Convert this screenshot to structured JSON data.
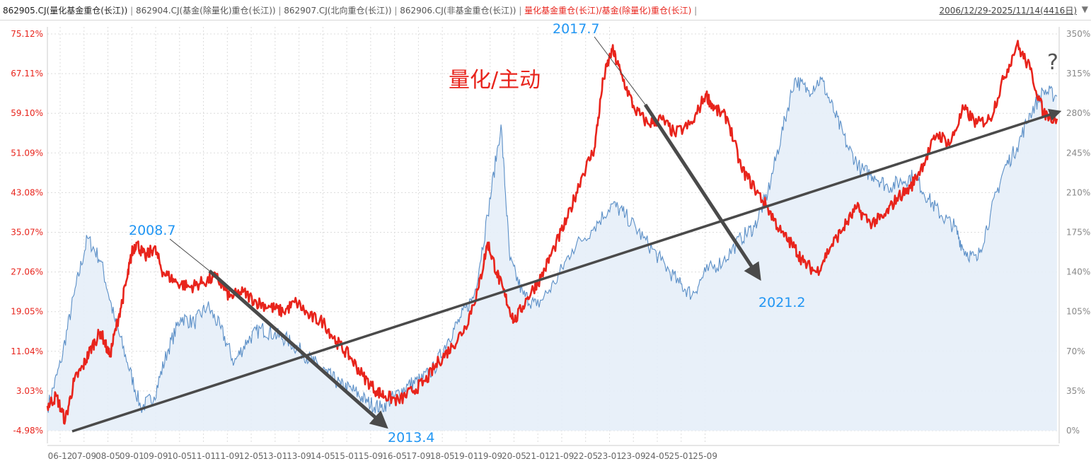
{
  "header": {
    "legend": [
      {
        "label": "862905.CJ(量化基金重仓(长江))",
        "style": "primary"
      },
      {
        "label": "862904.CJ(基金(除量化)重仓(长江))",
        "style": "normal"
      },
      {
        "label": "862907.CJ(北向重仓(长江))",
        "style": "normal"
      },
      {
        "label": "862906.CJ(非基金重仓(长江))",
        "style": "normal"
      },
      {
        "label": "量化基金重仓(长江)/基金(除量化)重仓(长江)",
        "style": "highlight"
      }
    ],
    "separator": "|",
    "date_range": "2006/12/29-2025/11/14(4416日)",
    "dropdown_icon": "triangle-down-icon"
  },
  "colors": {
    "ratio_line": "#e8241c",
    "excess_line": "#5b8fc7",
    "excess_fill": "#e6eef8",
    "grid": "#dcdcdc",
    "left_axis_text": "#e8241c",
    "right_axis_text": "#888888",
    "annotation_blue": "#2196f3",
    "trend_arrow": "#4a4a4a"
  },
  "annotations": {
    "title": "量化/主动",
    "question": "?",
    "peak_2008": "2008.7",
    "trough_2013": "2013.4",
    "peak_2017": "2017.7",
    "trough_2021": "2021.2"
  },
  "chart_data": {
    "type": "line",
    "x_ticks": [
      "06-12",
      "07-09",
      "08-05",
      "09-01",
      "09-09",
      "10-05",
      "11-01",
      "11-09",
      "12-05",
      "13-01",
      "13-09",
      "14-05",
      "15-01",
      "15-09",
      "16-05",
      "17-09",
      "18-05",
      "19-01",
      "19-09",
      "20-05",
      "21-01",
      "21-09",
      "22-05",
      "23-01",
      "23-09",
      "24-05",
      "25-01",
      "25-09"
    ],
    "y_left": {
      "ticks": [
        "75.12%",
        "67.11%",
        "59.10%",
        "51.09%",
        "43.08%",
        "35.07%",
        "27.06%",
        "19.05%",
        "11.04%",
        "3.03%",
        "-4.98%"
      ],
      "range": [
        -4.98,
        75.12
      ]
    },
    "y_right": {
      "ticks": [
        "350%",
        "315%",
        "280%",
        "245%",
        "210%",
        "175%",
        "140%",
        "105%",
        "70%",
        "35%",
        "0%"
      ],
      "range": [
        0,
        350
      ]
    },
    "grid": true,
    "series": [
      {
        "axis": "left",
        "color": "#e8241c",
        "points": [
          [
            "2006-12",
            0
          ],
          [
            "2007-02",
            2
          ],
          [
            "2007-04",
            -3
          ],
          [
            "2007-06",
            5
          ],
          [
            "2007-08",
            8
          ],
          [
            "2007-10",
            12
          ],
          [
            "2007-12",
            15
          ],
          [
            "2008-02",
            10
          ],
          [
            "2008-04",
            18
          ],
          [
            "2008-06",
            26
          ],
          [
            "2008-07",
            31
          ],
          [
            "2008-08",
            33
          ],
          [
            "2008-10",
            30
          ],
          [
            "2008-12",
            32
          ],
          [
            "2009-02",
            27
          ],
          [
            "2009-05",
            25
          ],
          [
            "2009-08",
            24
          ],
          [
            "2009-11",
            25
          ],
          [
            "2010-02",
            26
          ],
          [
            "2010-05",
            22
          ],
          [
            "2010-08",
            23
          ],
          [
            "2010-11",
            21
          ],
          [
            "2011-02",
            20
          ],
          [
            "2011-05",
            19
          ],
          [
            "2011-08",
            21
          ],
          [
            "2011-11",
            18
          ],
          [
            "2012-02",
            17
          ],
          [
            "2012-05",
            13
          ],
          [
            "2012-08",
            10
          ],
          [
            "2012-11",
            6
          ],
          [
            "2013-02",
            3
          ],
          [
            "2013-04",
            2
          ],
          [
            "2013-07",
            1
          ],
          [
            "2013-10",
            3
          ],
          [
            "2014-01",
            5
          ],
          [
            "2014-04",
            9
          ],
          [
            "2014-07",
            12
          ],
          [
            "2014-10",
            16
          ],
          [
            "2015-01",
            24
          ],
          [
            "2015-03",
            33
          ],
          [
            "2015-05",
            27
          ],
          [
            "2015-07",
            22
          ],
          [
            "2015-09",
            17
          ],
          [
            "2015-12",
            22
          ],
          [
            "2016-03",
            26
          ],
          [
            "2016-06",
            32
          ],
          [
            "2016-09",
            38
          ],
          [
            "2016-12",
            46
          ],
          [
            "2017-03",
            52
          ],
          [
            "2017-05",
            66
          ],
          [
            "2017-07",
            72
          ],
          [
            "2017-09",
            67
          ],
          [
            "2017-12",
            60
          ],
          [
            "2018-03",
            57
          ],
          [
            "2018-06",
            58
          ],
          [
            "2018-09",
            55
          ],
          [
            "2019-01",
            57
          ],
          [
            "2019-04",
            63
          ],
          [
            "2019-06",
            60
          ],
          [
            "2019-09",
            58
          ],
          [
            "2019-12",
            48
          ],
          [
            "2020-03",
            44
          ],
          [
            "2020-06",
            40
          ],
          [
            "2020-09",
            35
          ],
          [
            "2020-12",
            32
          ],
          [
            "2021-02",
            29
          ],
          [
            "2021-05",
            27
          ],
          [
            "2021-08",
            32
          ],
          [
            "2021-11",
            36
          ],
          [
            "2022-02",
            40
          ],
          [
            "2022-05",
            37
          ],
          [
            "2022-08",
            38
          ],
          [
            "2022-11",
            42
          ],
          [
            "2023-02",
            44
          ],
          [
            "2023-05",
            49
          ],
          [
            "2023-08",
            55
          ],
          [
            "2023-11",
            53
          ],
          [
            "2024-02",
            60
          ],
          [
            "2024-05",
            57
          ],
          [
            "2024-08",
            58
          ],
          [
            "2024-11",
            66
          ],
          [
            "2025-02",
            73
          ],
          [
            "2025-05",
            68
          ],
          [
            "2025-08",
            59
          ],
          [
            "2025-11",
            58
          ]
        ]
      },
      {
        "axis": "right",
        "color": "#5b8fc7",
        "fill": "#e6eef8",
        "points": [
          [
            "2006-12",
            20
          ],
          [
            "2007-03",
            60
          ],
          [
            "2007-06",
            120
          ],
          [
            "2007-09",
            170
          ],
          [
            "2007-12",
            150
          ],
          [
            "2008-03",
            100
          ],
          [
            "2008-06",
            60
          ],
          [
            "2008-09",
            20
          ],
          [
            "2008-12",
            30
          ],
          [
            "2009-03",
            70
          ],
          [
            "2009-06",
            100
          ],
          [
            "2009-09",
            95
          ],
          [
            "2009-12",
            110
          ],
          [
            "2010-03",
            90
          ],
          [
            "2010-06",
            60
          ],
          [
            "2010-09",
            80
          ],
          [
            "2010-12",
            90
          ],
          [
            "2011-03",
            85
          ],
          [
            "2011-06",
            80
          ],
          [
            "2011-09",
            70
          ],
          [
            "2011-12",
            60
          ],
          [
            "2012-03",
            50
          ],
          [
            "2012-06",
            40
          ],
          [
            "2012-09",
            35
          ],
          [
            "2012-12",
            25
          ],
          [
            "2013-03",
            20
          ],
          [
            "2013-06",
            30
          ],
          [
            "2013-09",
            40
          ],
          [
            "2013-12",
            45
          ],
          [
            "2014-03",
            55
          ],
          [
            "2014-06",
            80
          ],
          [
            "2014-09",
            100
          ],
          [
            "2014-12",
            120
          ],
          [
            "2015-03",
            190
          ],
          [
            "2015-06",
            270
          ],
          [
            "2015-08",
            150
          ],
          [
            "2015-11",
            120
          ],
          [
            "2016-02",
            110
          ],
          [
            "2016-06",
            130
          ],
          [
            "2016-10",
            160
          ],
          [
            "2017-03",
            180
          ],
          [
            "2017-07",
            200
          ],
          [
            "2017-10",
            190
          ],
          [
            "2018-02",
            170
          ],
          [
            "2018-06",
            150
          ],
          [
            "2018-10",
            130
          ],
          [
            "2019-01",
            120
          ],
          [
            "2019-04",
            140
          ],
          [
            "2019-08",
            150
          ],
          [
            "2019-12",
            170
          ],
          [
            "2020-03",
            180
          ],
          [
            "2020-06",
            210
          ],
          [
            "2020-09",
            260
          ],
          [
            "2020-12",
            310
          ],
          [
            "2021-03",
            300
          ],
          [
            "2021-06",
            310
          ],
          [
            "2021-09",
            280
          ],
          [
            "2021-12",
            250
          ],
          [
            "2022-03",
            230
          ],
          [
            "2022-06",
            225
          ],
          [
            "2022-09",
            215
          ],
          [
            "2022-12",
            220
          ],
          [
            "2023-03",
            225
          ],
          [
            "2023-06",
            205
          ],
          [
            "2023-09",
            190
          ],
          [
            "2023-12",
            180
          ],
          [
            "2024-02",
            160
          ],
          [
            "2024-05",
            150
          ],
          [
            "2024-08",
            190
          ],
          [
            "2024-11",
            230
          ],
          [
            "2025-02",
            250
          ],
          [
            "2025-05",
            280
          ],
          [
            "2025-08",
            300
          ],
          [
            "2025-11",
            295
          ]
        ]
      }
    ]
  }
}
